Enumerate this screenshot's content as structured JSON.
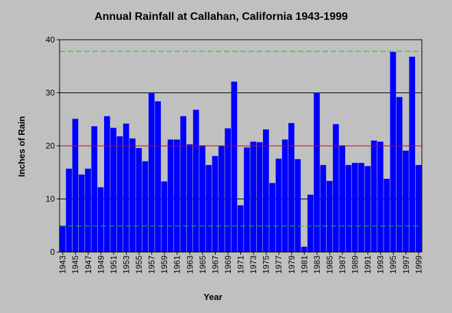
{
  "chart_data": {
    "type": "bar",
    "title": "Annual Rainfall at Callahan, California 1943-1999",
    "xlabel": "Year",
    "ylabel": "Inches of Rain",
    "ylim": [
      0,
      40
    ],
    "yticks": [
      "0",
      "10",
      "20",
      "30",
      "40"
    ],
    "x_tick_labels": [
      "1943",
      "1945",
      "1947",
      "1949",
      "1951",
      "1953",
      "1955",
      "1957",
      "1959",
      "1961",
      "1963",
      "1965",
      "1967",
      "1969",
      "1971",
      "1973",
      "1975",
      "1977",
      "1979",
      "1981",
      "1983",
      "1985",
      "1987",
      "1989",
      "1991",
      "1993",
      "1995",
      "1997",
      "1999"
    ],
    "categories": [
      1943,
      1944,
      1945,
      1946,
      1947,
      1948,
      1949,
      1950,
      1951,
      1952,
      1953,
      1954,
      1955,
      1956,
      1957,
      1958,
      1959,
      1960,
      1961,
      1962,
      1963,
      1964,
      1965,
      1966,
      1967,
      1968,
      1969,
      1970,
      1971,
      1972,
      1973,
      1974,
      1975,
      1976,
      1977,
      1978,
      1979,
      1980,
      1981,
      1982,
      1983,
      1984,
      1985,
      1986,
      1987,
      1988,
      1989,
      1990,
      1991,
      1992,
      1993,
      1994,
      1995,
      1996,
      1997,
      1998,
      1999
    ],
    "values": [
      5.0,
      15.7,
      25.1,
      14.6,
      15.7,
      23.7,
      12.2,
      25.6,
      23.4,
      21.8,
      24.2,
      21.4,
      19.6,
      17.1,
      30.0,
      28.4,
      13.3,
      21.2,
      21.2,
      25.6,
      20.3,
      26.8,
      20.1,
      16.4,
      18.1,
      20.0,
      23.3,
      32.1,
      8.8,
      19.7,
      20.8,
      20.7,
      23.1,
      13.0,
      17.6,
      21.2,
      24.3,
      17.5,
      1.0,
      10.8,
      30.0,
      16.4,
      13.4,
      24.1,
      20.1,
      16.4,
      16.8,
      16.8,
      16.2,
      21.0,
      20.8,
      13.8,
      37.7,
      29.2,
      19.1,
      36.8,
      16.4
    ],
    "reference_lines": [
      {
        "value": 37.8,
        "color": "#00cc00",
        "style": "dashed"
      },
      {
        "value": 20.0,
        "color": "#cc0000",
        "style": "solid"
      },
      {
        "value": 4.9,
        "color": "#00cc00",
        "style": "dashed"
      }
    ],
    "grid": true,
    "colors": {
      "bar": "#0000ff",
      "background": "#c0c0c0",
      "grid": "#000000"
    }
  }
}
